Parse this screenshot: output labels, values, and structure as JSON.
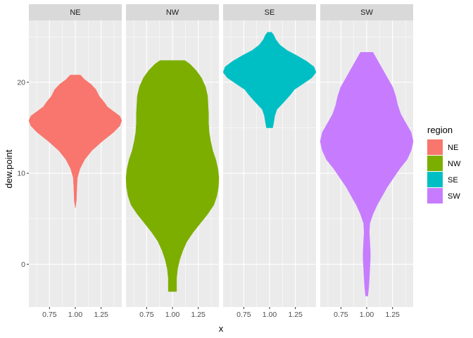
{
  "chart_data": {
    "type": "violin",
    "facet_by": "region",
    "xlabel": "x",
    "ylabel": "dew.point",
    "x_ticks": [
      0.75,
      1.0,
      1.25
    ],
    "x_tick_labels": [
      "0.75",
      "1.00",
      "1.25"
    ],
    "xlim": [
      0.55,
      1.45
    ],
    "y_ticks": [
      0,
      10,
      20
    ],
    "y_tick_labels": [
      "0",
      "10",
      "20"
    ],
    "ylim": [
      -4.7,
      26.8
    ],
    "grid": true,
    "legend": {
      "title": "region",
      "position": "right",
      "entries": [
        "NE",
        "NW",
        "SE",
        "SW"
      ]
    },
    "colors": {
      "NE": "#F8766D",
      "NW": "#7CAE00",
      "SE": "#00BFC4",
      "SW": "#C77CFF",
      "panel_bg": "#EBEBEB",
      "strip_bg": "#D9D9D9",
      "grid": "#FFFFFF"
    },
    "series": [
      {
        "name": "NE",
        "x_center": 1.0,
        "profile": [
          [
            6.2,
            0.0
          ],
          [
            7.0,
            0.01
          ],
          [
            8.5,
            0.015
          ],
          [
            9.5,
            0.02
          ],
          [
            10.5,
            0.045
          ],
          [
            11.5,
            0.09
          ],
          [
            12.5,
            0.16
          ],
          [
            13.5,
            0.26
          ],
          [
            14.5,
            0.37
          ],
          [
            15.2,
            0.43
          ],
          [
            15.8,
            0.45
          ],
          [
            16.3,
            0.43
          ],
          [
            16.8,
            0.37
          ],
          [
            17.3,
            0.31
          ],
          [
            17.8,
            0.28
          ],
          [
            18.5,
            0.23
          ],
          [
            19.2,
            0.2
          ],
          [
            19.8,
            0.15
          ],
          [
            20.3,
            0.09
          ],
          [
            20.8,
            0.05
          ]
        ]
      },
      {
        "name": "NW",
        "x_center": 1.0,
        "profile": [
          [
            -3.0,
            0.04
          ],
          [
            -1.5,
            0.04
          ],
          [
            -0.5,
            0.05
          ],
          [
            0.5,
            0.07
          ],
          [
            1.5,
            0.1
          ],
          [
            2.5,
            0.14
          ],
          [
            3.5,
            0.2
          ],
          [
            4.5,
            0.27
          ],
          [
            5.5,
            0.34
          ],
          [
            6.5,
            0.4
          ],
          [
            7.5,
            0.43
          ],
          [
            8.5,
            0.445
          ],
          [
            9.5,
            0.45
          ],
          [
            10.5,
            0.44
          ],
          [
            11.5,
            0.42
          ],
          [
            12.5,
            0.39
          ],
          [
            13.5,
            0.37
          ],
          [
            14.5,
            0.355
          ],
          [
            15.5,
            0.35
          ],
          [
            16.5,
            0.35
          ],
          [
            17.5,
            0.345
          ],
          [
            18.5,
            0.34
          ],
          [
            19.5,
            0.32
          ],
          [
            20.5,
            0.28
          ],
          [
            21.3,
            0.23
          ],
          [
            22.0,
            0.17
          ],
          [
            22.4,
            0.12
          ]
        ]
      },
      {
        "name": "SE",
        "x_center": 1.0,
        "profile": [
          [
            15.0,
            0.03
          ],
          [
            15.6,
            0.04
          ],
          [
            16.3,
            0.05
          ],
          [
            17.0,
            0.07
          ],
          [
            17.6,
            0.12
          ],
          [
            18.1,
            0.16
          ],
          [
            18.6,
            0.2
          ],
          [
            19.2,
            0.24
          ],
          [
            19.8,
            0.32
          ],
          [
            20.5,
            0.41
          ],
          [
            21.1,
            0.45
          ],
          [
            21.7,
            0.43
          ],
          [
            22.3,
            0.36
          ],
          [
            22.9,
            0.27
          ],
          [
            23.5,
            0.17
          ],
          [
            24.1,
            0.1
          ],
          [
            24.7,
            0.06
          ],
          [
            25.2,
            0.04
          ],
          [
            25.5,
            0.02
          ]
        ]
      },
      {
        "name": "SW",
        "x_center": 1.0,
        "profile": [
          [
            -3.5,
            0.01
          ],
          [
            -2.5,
            0.02
          ],
          [
            -1.5,
            0.025
          ],
          [
            -0.5,
            0.03
          ],
          [
            0.5,
            0.035
          ],
          [
            1.5,
            0.035
          ],
          [
            2.5,
            0.03
          ],
          [
            3.5,
            0.025
          ],
          [
            4.5,
            0.03
          ],
          [
            5.5,
            0.06
          ],
          [
            6.5,
            0.1
          ],
          [
            7.5,
            0.15
          ],
          [
            8.5,
            0.2
          ],
          [
            9.5,
            0.26
          ],
          [
            10.5,
            0.32
          ],
          [
            11.5,
            0.39
          ],
          [
            12.5,
            0.43
          ],
          [
            13.5,
            0.45
          ],
          [
            14.5,
            0.43
          ],
          [
            15.5,
            0.38
          ],
          [
            16.5,
            0.33
          ],
          [
            17.5,
            0.3
          ],
          [
            18.5,
            0.28
          ],
          [
            19.5,
            0.25
          ],
          [
            20.5,
            0.2
          ],
          [
            21.5,
            0.15
          ],
          [
            22.5,
            0.1
          ],
          [
            23.3,
            0.06
          ]
        ]
      }
    ]
  }
}
